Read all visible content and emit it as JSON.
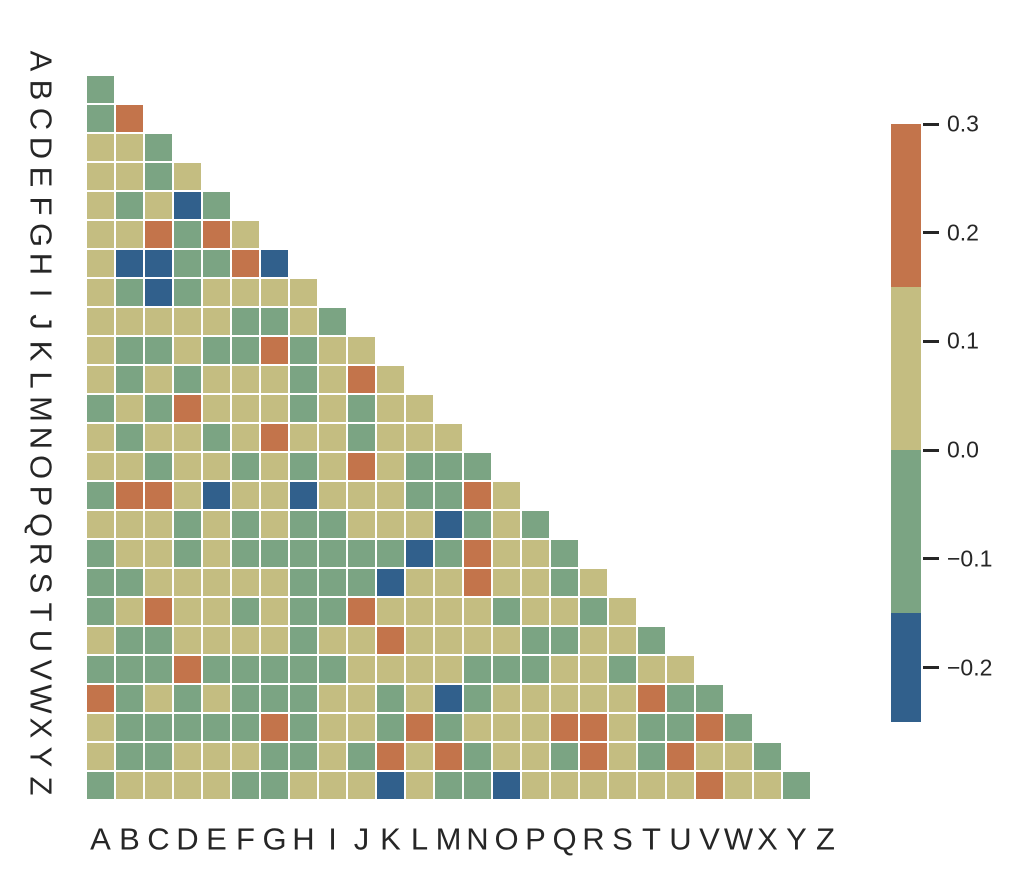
{
  "chart_data": {
    "type": "heatmap",
    "title": "",
    "xlabel": "",
    "ylabel": "",
    "x_categories": [
      "A",
      "B",
      "C",
      "D",
      "E",
      "F",
      "G",
      "H",
      "I",
      "J",
      "K",
      "L",
      "M",
      "N",
      "O",
      "P",
      "Q",
      "R",
      "S",
      "T",
      "U",
      "V",
      "W",
      "X",
      "Y",
      "Z"
    ],
    "y_categories": [
      "A",
      "B",
      "C",
      "D",
      "E",
      "F",
      "G",
      "H",
      "I",
      "J",
      "K",
      "L",
      "M",
      "N",
      "O",
      "P",
      "Q",
      "R",
      "S",
      "T",
      "U",
      "V",
      "W",
      "X",
      "Y",
      "Z"
    ],
    "mask": "upper triangle including diagonal is hidden; visible rows B-Z, columns A-Y",
    "palette": {
      "o": "#C3744B",
      "t": "#C4BD81",
      "g": "#7BA483",
      "b": "#31608C"
    },
    "value_bins": {
      "o": [
        0.15,
        0.3
      ],
      "t": [
        0.0,
        0.15
      ],
      "g": [
        -0.15,
        0.0
      ],
      "b": [
        -0.25,
        -0.15
      ]
    },
    "rows": [
      {
        "label": "B",
        "cells": "g"
      },
      {
        "label": "C",
        "cells": "go"
      },
      {
        "label": "D",
        "cells": "ttg"
      },
      {
        "label": "E",
        "cells": "ttgt"
      },
      {
        "label": "F",
        "cells": "tgtbg"
      },
      {
        "label": "G",
        "cells": "ttogot"
      },
      {
        "label": "H",
        "cells": "tbbggob"
      },
      {
        "label": "I",
        "cells": "tgbgtttt"
      },
      {
        "label": "J",
        "cells": "tttttggtg"
      },
      {
        "label": "K",
        "cells": "tggtggogtt"
      },
      {
        "label": "L",
        "cells": "tgtgtttgtot"
      },
      {
        "label": "M",
        "cells": "gtgotttgtgtt"
      },
      {
        "label": "N",
        "cells": "tgttgtottgttt"
      },
      {
        "label": "O",
        "cells": "ttgttgtgtotggg"
      },
      {
        "label": "P",
        "cells": "gootbttbtttggot"
      },
      {
        "label": "Q",
        "cells": "tttgtgtggtttbgtg"
      },
      {
        "label": "R",
        "cells": "gttgtggggggbgottg"
      },
      {
        "label": "S",
        "cells": "ggtttttgggbttottgt"
      },
      {
        "label": "T",
        "cells": "gtottgtggottttgttgt"
      },
      {
        "label": "U",
        "cells": "tggttttgttottttggttg"
      },
      {
        "label": "V",
        "cells": "gggogggggttttgggttgtt"
      },
      {
        "label": "W",
        "cells": "ogtgtgggttgtbgtttttogg"
      },
      {
        "label": "X",
        "cells": "tgggggogttgogtttootggog"
      },
      {
        "label": "Y",
        "cells": "tggtttggtgotogttgotgottg"
      },
      {
        "label": "Z",
        "cells": "gttttggtttbtggbttttttottg"
      }
    ],
    "colorbar": {
      "vmin": -0.25,
      "vmax": 0.3,
      "tick_values": [
        0.3,
        0.2,
        0.1,
        0.0,
        -0.1,
        -0.2
      ],
      "tick_labels": [
        "0.3",
        "0.2",
        "0.1",
        "0.0",
        "−0.1",
        "−0.2"
      ],
      "segments": [
        {
          "key": "o",
          "from": 0.15,
          "to": 0.3
        },
        {
          "key": "t",
          "from": 0.0,
          "to": 0.15
        },
        {
          "key": "g",
          "from": -0.15,
          "to": 0.0
        },
        {
          "key": "b",
          "from": -0.25,
          "to": -0.15
        }
      ],
      "orientation": "vertical",
      "position": "right"
    }
  }
}
